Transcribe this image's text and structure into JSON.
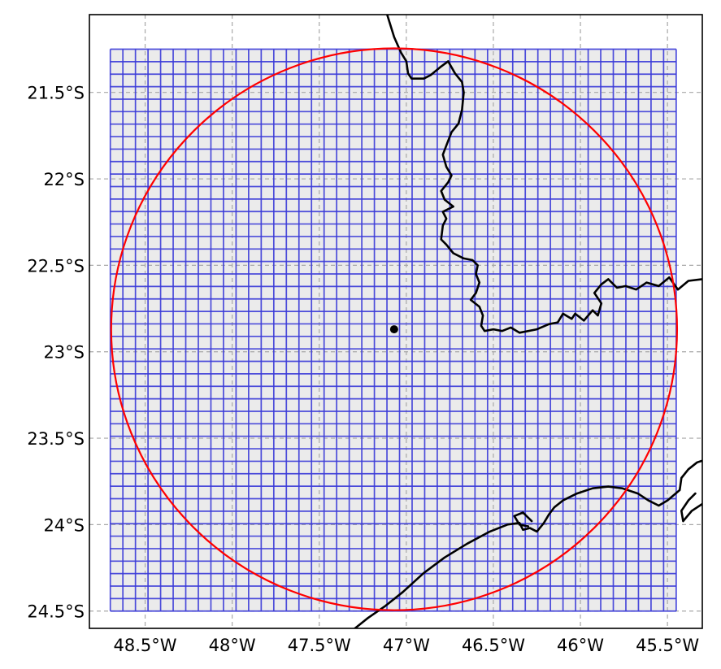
{
  "map": {
    "lon_range": [
      -48.82,
      -45.3
    ],
    "lat_range": [
      -24.6,
      -21.05
    ],
    "x_ticks": [
      {
        "value": -48.5,
        "label": "48.5°W"
      },
      {
        "value": -48.0,
        "label": "48°W"
      },
      {
        "value": -47.5,
        "label": "47.5°W"
      },
      {
        "value": -47.0,
        "label": "47°W"
      },
      {
        "value": -46.5,
        "label": "46.5°W"
      },
      {
        "value": -46.0,
        "label": "46°W"
      },
      {
        "value": -45.5,
        "label": "45.5°W"
      }
    ],
    "y_ticks": [
      {
        "value": -21.5,
        "label": "21.5°S"
      },
      {
        "value": -22.0,
        "label": "22°S"
      },
      {
        "value": -22.5,
        "label": "22.5°S"
      },
      {
        "value": -23.0,
        "label": "23°S"
      },
      {
        "value": -23.5,
        "label": "23.5°S"
      },
      {
        "value": -24.0,
        "label": "24°S"
      },
      {
        "value": -24.5,
        "label": "24.5°S"
      }
    ],
    "gridlines": "dashed",
    "cell_grid": {
      "lon_min": -48.7,
      "lon_max": -45.45,
      "lat_min": -24.5,
      "lat_max": -21.25,
      "cols": 45,
      "rows": 45,
      "color": "#3a3ad8",
      "fill": "#ebebeb"
    },
    "circle": {
      "center_lon": -47.07,
      "center_lat": -22.87,
      "radius_deg_lon": 1.625,
      "radius_deg_lat": 1.625,
      "color": "#ff0000"
    },
    "center_point": {
      "lon": -47.07,
      "lat": -22.87,
      "color": "#000000"
    },
    "coastlines": [
      [
        [
          -47.11,
          -21.05
        ],
        [
          -47.07,
          -21.18
        ],
        [
          -47.03,
          -21.27
        ],
        [
          -47.0,
          -21.32
        ],
        [
          -46.99,
          -21.39
        ],
        [
          -46.97,
          -21.42
        ],
        [
          -46.9,
          -21.42
        ],
        [
          -46.86,
          -21.4
        ],
        [
          -46.8,
          -21.35
        ],
        [
          -46.76,
          -21.32
        ],
        [
          -46.72,
          -21.39
        ],
        [
          -46.68,
          -21.44
        ],
        [
          -46.67,
          -21.5
        ],
        [
          -46.68,
          -21.6
        ],
        [
          -46.7,
          -21.68
        ],
        [
          -46.74,
          -21.73
        ],
        [
          -46.76,
          -21.78
        ],
        [
          -46.79,
          -21.86
        ],
        [
          -46.77,
          -21.93
        ],
        [
          -46.74,
          -21.98
        ],
        [
          -46.76,
          -22.02
        ],
        [
          -46.8,
          -22.07
        ],
        [
          -46.78,
          -22.12
        ],
        [
          -46.73,
          -22.16
        ],
        [
          -46.79,
          -22.19
        ],
        [
          -46.77,
          -22.23
        ],
        [
          -46.79,
          -22.27
        ],
        [
          -46.8,
          -22.35
        ],
        [
          -46.77,
          -22.38
        ],
        [
          -46.73,
          -22.43
        ],
        [
          -46.67,
          -22.46
        ],
        [
          -46.62,
          -22.47
        ],
        [
          -46.59,
          -22.5
        ],
        [
          -46.6,
          -22.55
        ],
        [
          -46.58,
          -22.6
        ],
        [
          -46.6,
          -22.66
        ],
        [
          -46.63,
          -22.7
        ],
        [
          -46.58,
          -22.74
        ],
        [
          -46.56,
          -22.79
        ],
        [
          -46.57,
          -22.85
        ],
        [
          -46.55,
          -22.88
        ],
        [
          -46.5,
          -22.87
        ],
        [
          -46.45,
          -22.88
        ],
        [
          -46.4,
          -22.86
        ],
        [
          -46.35,
          -22.89
        ],
        [
          -46.25,
          -22.87
        ],
        [
          -46.18,
          -22.84
        ],
        [
          -46.13,
          -22.83
        ],
        [
          -46.1,
          -22.78
        ],
        [
          -46.05,
          -22.81
        ],
        [
          -46.03,
          -22.78
        ],
        [
          -45.98,
          -22.82
        ],
        [
          -45.93,
          -22.76
        ],
        [
          -45.9,
          -22.79
        ],
        [
          -45.88,
          -22.72
        ],
        [
          -45.92,
          -22.66
        ],
        [
          -45.88,
          -22.61
        ],
        [
          -45.84,
          -22.58
        ],
        [
          -45.79,
          -22.63
        ],
        [
          -45.74,
          -22.62
        ],
        [
          -45.68,
          -22.64
        ],
        [
          -45.62,
          -22.6
        ],
        [
          -45.55,
          -22.62
        ],
        [
          -45.49,
          -22.57
        ],
        [
          -45.44,
          -22.64
        ],
        [
          -45.38,
          -22.59
        ],
        [
          -45.3,
          -22.58
        ]
      ],
      [
        [
          -47.32,
          -24.62
        ],
        [
          -47.22,
          -24.54
        ],
        [
          -47.12,
          -24.47
        ],
        [
          -47.02,
          -24.39
        ],
        [
          -46.9,
          -24.28
        ],
        [
          -46.78,
          -24.19
        ],
        [
          -46.65,
          -24.11
        ],
        [
          -46.52,
          -24.04
        ],
        [
          -46.42,
          -24.0
        ],
        [
          -46.35,
          -23.99
        ],
        [
          -46.33,
          -24.03
        ],
        [
          -46.29,
          -24.02
        ],
        [
          -46.25,
          -24.04
        ],
        [
          -46.21,
          -23.99
        ],
        [
          -46.18,
          -23.94
        ],
        [
          -46.15,
          -23.9
        ],
        [
          -46.1,
          -23.86
        ],
        [
          -46.02,
          -23.82
        ],
        [
          -45.93,
          -23.79
        ],
        [
          -45.84,
          -23.78
        ],
        [
          -45.76,
          -23.79
        ],
        [
          -45.67,
          -23.82
        ],
        [
          -45.61,
          -23.86
        ],
        [
          -45.55,
          -23.89
        ],
        [
          -45.5,
          -23.86
        ],
        [
          -45.43,
          -23.8
        ],
        [
          -45.42,
          -23.73
        ],
        [
          -45.38,
          -23.68
        ],
        [
          -45.33,
          -23.64
        ],
        [
          -45.3,
          -23.63
        ]
      ],
      [
        [
          -45.3,
          -23.88
        ],
        [
          -45.36,
          -23.92
        ],
        [
          -45.41,
          -23.98
        ],
        [
          -45.42,
          -23.92
        ],
        [
          -45.38,
          -23.86
        ],
        [
          -45.34,
          -23.82
        ]
      ],
      [
        [
          -46.28,
          -23.98
        ],
        [
          -46.33,
          -23.93
        ],
        [
          -46.38,
          -23.95
        ],
        [
          -46.35,
          -24.0
        ],
        [
          -46.3,
          -24.01
        ]
      ]
    ]
  }
}
